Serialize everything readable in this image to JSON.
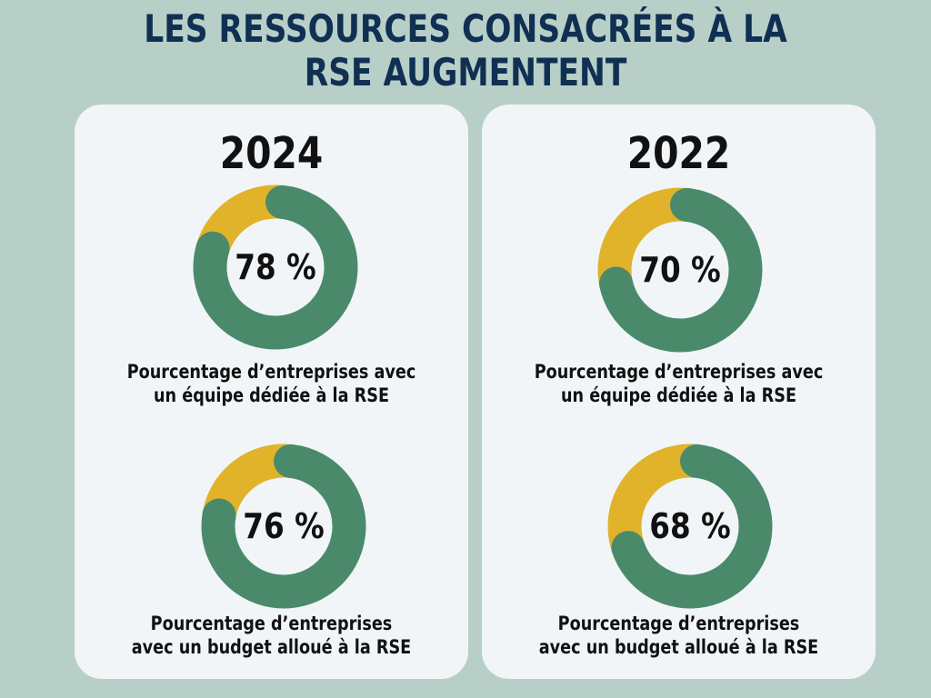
{
  "colors": {
    "background": "#b8cfc8",
    "card": "#f1f5f8",
    "title": "#0f3052",
    "text": "#111111",
    "green": "#4a8a6a",
    "yellow": "#e0b32a"
  },
  "title": {
    "line1": "LES RESSOURCES CONSACRÉES À LA",
    "line2": "RSE AUGMENTENT"
  },
  "chart_data": [
    {
      "type": "pie",
      "year": "2024",
      "value": 78,
      "value_label": "78 %",
      "caption_line1": "Pourcentage d’entreprises avec",
      "caption_line2": "un équipe dédiée à la RSE"
    },
    {
      "type": "pie",
      "year": "2024",
      "value": 76,
      "value_label": "76 %",
      "caption_line1": "Pourcentage d’entreprises",
      "caption_line2": "avec un budget alloué à la RSE"
    },
    {
      "type": "pie",
      "year": "2022",
      "value": 70,
      "value_label": "70 %",
      "caption_line1": "Pourcentage d’entreprises avec",
      "caption_line2": "un équipe dédiée à la RSE"
    },
    {
      "type": "pie",
      "year": "2022",
      "value": 68,
      "value_label": "68 %",
      "caption_line1": "Pourcentage d’entreprises",
      "caption_line2": "avec un budget alloué à la RSE"
    }
  ]
}
